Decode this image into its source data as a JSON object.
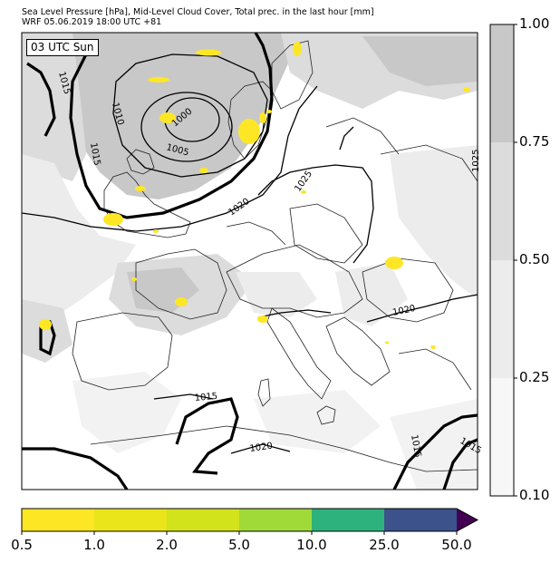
{
  "header": {
    "line1": "Sea Level Pressure [hPa], Mid-Level Cloud Cover, Total prec. in the last hour [mm]",
    "line2": "WRF 05.06.2019 18:00 UTC +81"
  },
  "valid_time": "03 UTC Sun",
  "isobar_labels": [
    "1015",
    "1010",
    "1000",
    "1005",
    "1015",
    "1020",
    "1025",
    "1025",
    "1020",
    "1015",
    "1020",
    "1015",
    "1015"
  ],
  "cloud_colorbar": {
    "ticks": [
      "1.00",
      "0.75",
      "0.50",
      "0.25",
      "0.10"
    ],
    "colors": [
      "#c8c8c8",
      "#dcdcdc",
      "#ececec",
      "#f7f7f7"
    ]
  },
  "precip_colorbar": {
    "ticks": [
      "0.5",
      "1.0",
      "2.0",
      "5.0",
      "10.0",
      "25.0",
      "50.0"
    ],
    "colors": [
      "#fde725",
      "#eae51a",
      "#d2e21b",
      "#a0da39",
      "#2db27d",
      "#3b528b",
      "#440154"
    ]
  }
}
